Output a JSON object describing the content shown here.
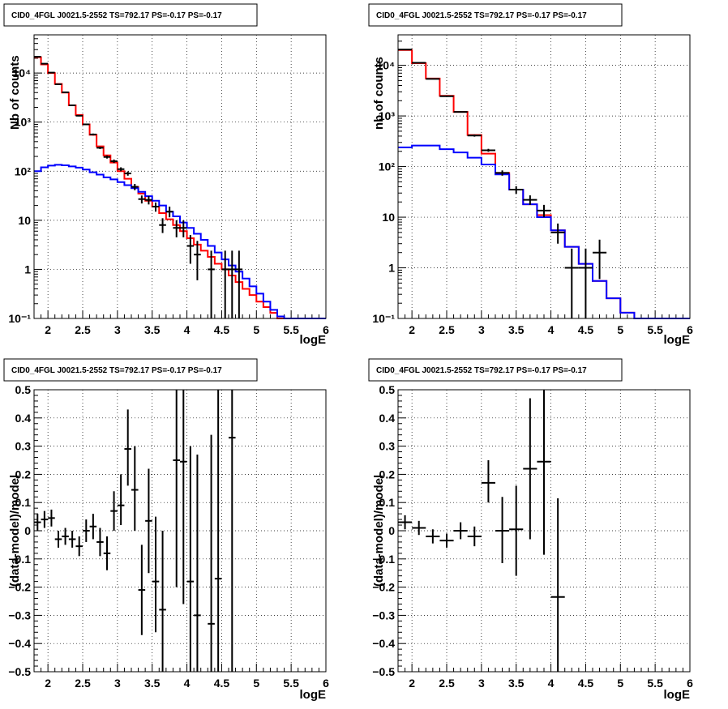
{
  "chart_data": [
    {
      "type": "step-histogram",
      "title": "CID0_4FGL J0021.5-2552 TS=792.17 PS=-0.17 PS=-0.17",
      "xlabel": "logE",
      "ylabel": "Nb of counts",
      "xlim": [
        1.8,
        6.0
      ],
      "ylim": [
        0.1,
        60000
      ],
      "yscale": "log",
      "grid": true,
      "xticks": [
        2,
        2.5,
        3,
        3.5,
        4,
        4.5,
        5,
        5.5,
        6
      ],
      "xtick_labels": [
        "2",
        "2.5",
        "3",
        "3.5",
        "4",
        "4.5",
        "5",
        "5.5",
        "6"
      ],
      "yticks": [
        0.1,
        1,
        10,
        100,
        1000,
        10000
      ],
      "ytick_labels": [
        "10⁻¹",
        "1",
        "10",
        "10²",
        "10³",
        "10⁴"
      ],
      "bin_edges": [
        1.8,
        1.9,
        2.0,
        2.1,
        2.2,
        2.3,
        2.4,
        2.5,
        2.6,
        2.7,
        2.8,
        2.9,
        3.0,
        3.1,
        3.2,
        3.3,
        3.4,
        3.5,
        3.6,
        3.7,
        3.8,
        3.9,
        4.0,
        4.1,
        4.2,
        4.3,
        4.4,
        4.5,
        4.6,
        4.7,
        4.8,
        4.9,
        5.0,
        5.1,
        5.2,
        5.3,
        5.4,
        5.5,
        5.6,
        5.7,
        5.8,
        5.9,
        6.0
      ],
      "series": [
        {
          "role": "total-model",
          "color": "#ff0000",
          "values": [
            21000,
            15000,
            10000,
            6000,
            4000,
            2200,
            1400,
            900,
            550,
            320,
            210,
            150,
            100,
            70,
            48,
            35,
            25,
            19,
            14,
            10.5,
            8,
            6,
            4.3,
            3.2,
            2.4,
            1.8,
            1.3,
            1.0,
            0.75,
            0.55,
            0.4,
            0.3,
            0.22,
            0.17,
            0.13,
            0.1,
            0.1,
            0.1,
            0.1,
            0.1,
            0.1,
            0.1
          ]
        },
        {
          "role": "source-model",
          "color": "#0000ff",
          "values": [
            100,
            120,
            130,
            135,
            132,
            125,
            118,
            108,
            95,
            85,
            75,
            68,
            60,
            52,
            45,
            38,
            31,
            25,
            20,
            15,
            12,
            9,
            7,
            5.3,
            4,
            3,
            2.2,
            1.6,
            1.2,
            0.9,
            0.65,
            0.45,
            0.32,
            0.22,
            0.15,
            0.11,
            0.1,
            0.1,
            0.1,
            0.1,
            0.1,
            0.1
          ]
        },
        {
          "role": "data",
          "color": "#000000",
          "points": [
            {
              "x": 1.85,
              "y": 21500,
              "lo": 21300,
              "hi": 21700
            },
            {
              "x": 1.95,
              "y": 15500,
              "lo": 15300,
              "hi": 15700
            },
            {
              "x": 2.05,
              "y": 10200,
              "lo": 10000,
              "hi": 10400
            },
            {
              "x": 2.15,
              "y": 5900,
              "lo": 5800,
              "hi": 6000
            },
            {
              "x": 2.25,
              "y": 4050,
              "lo": 3950,
              "hi": 4150
            },
            {
              "x": 2.35,
              "y": 2200,
              "lo": 2150,
              "hi": 2250
            },
            {
              "x": 2.45,
              "y": 1350,
              "lo": 1310,
              "hi": 1390
            },
            {
              "x": 2.55,
              "y": 900,
              "lo": 870,
              "hi": 930
            },
            {
              "x": 2.65,
              "y": 560,
              "lo": 535,
              "hi": 585
            },
            {
              "x": 2.75,
              "y": 300,
              "lo": 283,
              "hi": 317
            },
            {
              "x": 2.85,
              "y": 195,
              "lo": 181,
              "hi": 209
            },
            {
              "x": 2.95,
              "y": 160,
              "lo": 147,
              "hi": 173
            },
            {
              "x": 3.05,
              "y": 110,
              "lo": 100,
              "hi": 120
            },
            {
              "x": 3.15,
              "y": 90,
              "lo": 81,
              "hi": 99
            },
            {
              "x": 3.25,
              "y": 48,
              "lo": 41,
              "hi": 55
            },
            {
              "x": 3.35,
              "y": 27,
              "lo": 22,
              "hi": 32
            },
            {
              "x": 3.45,
              "y": 26,
              "lo": 21,
              "hi": 31
            },
            {
              "x": 3.55,
              "y": 19,
              "lo": 15,
              "hi": 23
            },
            {
              "x": 3.65,
              "y": 8,
              "lo": 5.5,
              "hi": 11
            },
            {
              "x": 3.75,
              "y": 15,
              "lo": 11.5,
              "hi": 19
            },
            {
              "x": 3.85,
              "y": 7,
              "lo": 4.5,
              "hi": 10
            },
            {
              "x": 3.95,
              "y": 7,
              "lo": 4.5,
              "hi": 10
            },
            {
              "x": 4.05,
              "y": 3,
              "lo": 1.3,
              "hi": 5
            },
            {
              "x": 4.15,
              "y": 2,
              "lo": 0.6,
              "hi": 3.8
            },
            {
              "x": 4.35,
              "y": 1,
              "lo": 0.1,
              "hi": 2.4
            },
            {
              "x": 4.55,
              "y": 1,
              "lo": 0.1,
              "hi": 2.4
            },
            {
              "x": 4.65,
              "y": 1,
              "lo": 0.1,
              "hi": 2.4
            },
            {
              "x": 4.75,
              "y": 1,
              "lo": 0.1,
              "hi": 2.4
            }
          ]
        }
      ]
    },
    {
      "type": "step-histogram",
      "title": "CID0_4FGL J0021.5-2552 TS=792.17 PS=-0.17 PS=-0.17",
      "xlabel": "logE",
      "ylabel": "nb of counts",
      "xlim": [
        1.8,
        6.0
      ],
      "ylim": [
        0.1,
        40000
      ],
      "yscale": "log",
      "grid": true,
      "xticks": [
        2,
        2.5,
        3,
        3.5,
        4,
        4.5,
        5,
        5.5,
        6
      ],
      "xtick_labels": [
        "2",
        "2.5",
        "3",
        "3.5",
        "4",
        "4.5",
        "5",
        "5.5",
        "6"
      ],
      "yticks": [
        0.1,
        1,
        10,
        100,
        1000,
        10000
      ],
      "ytick_labels": [
        "10⁻¹",
        "1",
        "10",
        "10²",
        "10³",
        "10⁴"
      ],
      "bin_edges": [
        1.8,
        2.0,
        2.2,
        2.4,
        2.6,
        2.8,
        3.0,
        3.2,
        3.4,
        3.6,
        3.8,
        4.0,
        4.2,
        4.4,
        4.6,
        4.8,
        5.0,
        5.2,
        5.4,
        5.6,
        5.8,
        6.0
      ],
      "series": [
        {
          "role": "total-model",
          "color": "#ff0000",
          "values": [
            20000,
            11000,
            5500,
            2500,
            1200,
            420,
            180,
            75,
            35,
            18,
            11,
            5.5,
            2.6,
            1.2,
            0.55,
            0.25,
            0.13,
            0.1,
            0.1,
            0.1,
            0.1
          ]
        },
        {
          "role": "source-model",
          "color": "#0000ff",
          "values": [
            240,
            260,
            260,
            220,
            190,
            150,
            110,
            70,
            35,
            18,
            10,
            5.5,
            2.6,
            1.2,
            0.55,
            0.25,
            0.13,
            0.1,
            0.1,
            0.1,
            0.1
          ]
        },
        {
          "role": "data",
          "color": "#000000",
          "points": [
            {
              "x": 1.9,
              "y": 20500,
              "lo": 20350,
              "hi": 20650
            },
            {
              "x": 2.1,
              "y": 11200,
              "lo": 11090,
              "hi": 11310
            },
            {
              "x": 2.3,
              "y": 5400,
              "lo": 5330,
              "hi": 5470
            },
            {
              "x": 2.5,
              "y": 2450,
              "lo": 2400,
              "hi": 2500
            },
            {
              "x": 2.7,
              "y": 1200,
              "lo": 1165,
              "hi": 1235
            },
            {
              "x": 2.9,
              "y": 410,
              "lo": 390,
              "hi": 430
            },
            {
              "x": 3.1,
              "y": 210,
              "lo": 196,
              "hi": 224
            },
            {
              "x": 3.3,
              "y": 75,
              "lo": 66,
              "hi": 84
            },
            {
              "x": 3.5,
              "y": 35,
              "lo": 29,
              "hi": 41
            },
            {
              "x": 3.7,
              "y": 22,
              "lo": 17.5,
              "hi": 27
            },
            {
              "x": 3.9,
              "y": 13.5,
              "lo": 10,
              "hi": 17.5
            },
            {
              "x": 4.1,
              "y": 5,
              "lo": 3,
              "hi": 7.5
            },
            {
              "x": 4.3,
              "y": 1,
              "lo": 0.1,
              "hi": 2.4
            },
            {
              "x": 4.5,
              "y": 1,
              "lo": 0.1,
              "hi": 2.4
            },
            {
              "x": 4.7,
              "y": 2,
              "lo": 0.6,
              "hi": 3.6
            }
          ]
        }
      ]
    },
    {
      "type": "errorbar",
      "title": "CID0_4FGL J0021.5-2552 TS=792.17 PS=-0.17 PS=-0.17",
      "xlabel": "logE",
      "ylabel": "(data-model)/model",
      "xlim": [
        1.8,
        6.0
      ],
      "ylim": [
        -0.5,
        0.5
      ],
      "yscale": "linear",
      "grid": true,
      "xticks": [
        2,
        2.5,
        3,
        3.5,
        4,
        4.5,
        5,
        5.5,
        6
      ],
      "xtick_labels": [
        "2",
        "2.5",
        "3",
        "3.5",
        "4",
        "4.5",
        "5",
        "5.5",
        "6"
      ],
      "yticks": [
        -0.5,
        -0.4,
        -0.3,
        -0.2,
        -0.1,
        0,
        0.1,
        0.2,
        0.3,
        0.4,
        0.5
      ],
      "ytick_labels": [
        "−0.5",
        "−0.4",
        "−0.3",
        "−0.2",
        "−0.1",
        "0",
        "0.1",
        "0.2",
        "0.3",
        "0.4",
        "0.5"
      ],
      "xhalfwidth": 0.05,
      "points": [
        {
          "x": 1.85,
          "y": 0.03,
          "lo": 0.0,
          "hi": 0.06
        },
        {
          "x": 1.95,
          "y": 0.04,
          "lo": 0.01,
          "hi": 0.07
        },
        {
          "x": 2.05,
          "y": 0.045,
          "lo": 0.015,
          "hi": 0.075
        },
        {
          "x": 2.15,
          "y": -0.03,
          "lo": -0.06,
          "hi": 0.0
        },
        {
          "x": 2.25,
          "y": -0.02,
          "lo": -0.05,
          "hi": 0.01
        },
        {
          "x": 2.35,
          "y": -0.03,
          "lo": -0.06,
          "hi": 0.0
        },
        {
          "x": 2.45,
          "y": -0.055,
          "lo": -0.09,
          "hi": -0.02
        },
        {
          "x": 2.55,
          "y": 0.0,
          "lo": -0.04,
          "hi": 0.04
        },
        {
          "x": 2.65,
          "y": 0.015,
          "lo": -0.03,
          "hi": 0.06
        },
        {
          "x": 2.75,
          "y": -0.04,
          "lo": -0.09,
          "hi": 0.01
        },
        {
          "x": 2.85,
          "y": -0.08,
          "lo": -0.14,
          "hi": -0.02
        },
        {
          "x": 2.95,
          "y": 0.07,
          "lo": 0.0,
          "hi": 0.14
        },
        {
          "x": 3.05,
          "y": 0.09,
          "lo": 0.02,
          "hi": 0.2
        },
        {
          "x": 3.15,
          "y": 0.29,
          "lo": 0.16,
          "hi": 0.43
        },
        {
          "x": 3.25,
          "y": 0.145,
          "lo": 0.0,
          "hi": 0.3
        },
        {
          "x": 3.35,
          "y": -0.21,
          "lo": -0.37,
          "hi": -0.05
        },
        {
          "x": 3.45,
          "y": 0.035,
          "lo": -0.15,
          "hi": 0.22
        },
        {
          "x": 3.55,
          "y": -0.18,
          "lo": -0.36,
          "hi": 0.05
        },
        {
          "x": 3.65,
          "y": -0.28,
          "lo": -0.5,
          "hi": 0.0
        },
        {
          "x": 3.85,
          "y": 0.25,
          "lo": -0.2,
          "hi": 0.5
        },
        {
          "x": 3.95,
          "y": 0.245,
          "lo": -0.26,
          "hi": 0.5
        },
        {
          "x": 4.05,
          "y": -0.18,
          "lo": -0.5,
          "hi": 0.3
        },
        {
          "x": 4.15,
          "y": -0.3,
          "lo": -0.5,
          "hi": 0.27
        },
        {
          "x": 4.35,
          "y": -0.33,
          "lo": -0.5,
          "hi": 0.34
        },
        {
          "x": 4.45,
          "y": -0.17,
          "lo": -0.5,
          "hi": 0.5
        },
        {
          "x": 4.65,
          "y": 0.33,
          "lo": -0.5,
          "hi": 0.5
        }
      ]
    },
    {
      "type": "errorbar",
      "title": "CID0_4FGL J0021.5-2552 TS=792.17 PS=-0.17 PS=-0.17",
      "xlabel": "logE",
      "ylabel": "(data-model)/model",
      "xlim": [
        1.8,
        6.0
      ],
      "ylim": [
        -0.5,
        0.5
      ],
      "yscale": "linear",
      "grid": true,
      "xticks": [
        2,
        2.5,
        3,
        3.5,
        4,
        4.5,
        5,
        5.5,
        6
      ],
      "xtick_labels": [
        "2",
        "2.5",
        "3",
        "3.5",
        "4",
        "4.5",
        "5",
        "5.5",
        "6"
      ],
      "yticks": [
        -0.5,
        -0.4,
        -0.3,
        -0.2,
        -0.1,
        0,
        0.1,
        0.2,
        0.3,
        0.4,
        0.5
      ],
      "ytick_labels": [
        "−0.5",
        "−0.4",
        "−0.3",
        "−0.2",
        "−0.1",
        "0",
        "0.1",
        "0.2",
        "0.3",
        "0.4",
        "0.5"
      ],
      "xhalfwidth": 0.1,
      "points": [
        {
          "x": 1.9,
          "y": 0.03,
          "lo": 0.005,
          "hi": 0.055
        },
        {
          "x": 2.1,
          "y": 0.01,
          "lo": -0.015,
          "hi": 0.035
        },
        {
          "x": 2.3,
          "y": -0.02,
          "lo": -0.045,
          "hi": 0.005
        },
        {
          "x": 2.5,
          "y": -0.035,
          "lo": -0.06,
          "hi": -0.01
        },
        {
          "x": 2.7,
          "y": 0.0,
          "lo": -0.03,
          "hi": 0.03
        },
        {
          "x": 2.9,
          "y": -0.02,
          "lo": -0.055,
          "hi": 0.015
        },
        {
          "x": 3.1,
          "y": 0.17,
          "lo": 0.1,
          "hi": 0.25
        },
        {
          "x": 3.3,
          "y": 0.0,
          "lo": -0.115,
          "hi": 0.12
        },
        {
          "x": 3.5,
          "y": 0.005,
          "lo": -0.16,
          "hi": 0.16
        },
        {
          "x": 3.7,
          "y": 0.22,
          "lo": -0.03,
          "hi": 0.47
        },
        {
          "x": 3.9,
          "y": 0.245,
          "lo": -0.085,
          "hi": 0.5
        },
        {
          "x": 4.1,
          "y": -0.235,
          "lo": -0.5,
          "hi": 0.115
        }
      ]
    }
  ]
}
